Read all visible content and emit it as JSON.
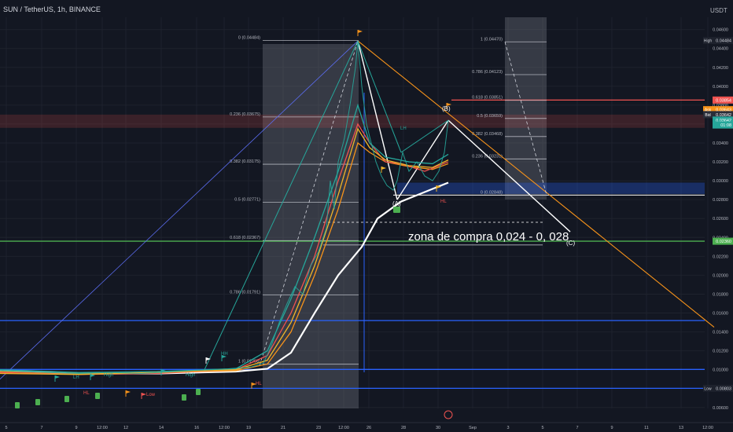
{
  "header": {
    "symbol_line": "SUN / TetherUS, 1h, BINANCE",
    "currency": "USDT"
  },
  "colors": {
    "bg": "#131722",
    "grid": "#1e222d",
    "text": "#b2b5be",
    "fib": "#787b86",
    "orange": "#f7931a",
    "green_line": "#26a69a",
    "red": "#ef5350",
    "blue": "#2962ff",
    "white": "#ffffff",
    "yellow": "#f0b429",
    "lime": "#4caf50"
  },
  "chart_data": {
    "type": "line",
    "title": "SUN / TetherUS, 1h, BINANCE",
    "xlabel": "",
    "ylabel": "USDT",
    "ylim": [
      0.0059,
      0.0473
    ],
    "x_ticks": [
      "5",
      "7",
      "9",
      "12:00",
      "12",
      "14",
      "16",
      "12:00",
      "19",
      "21",
      "23",
      "12:00",
      "26",
      "28",
      "30",
      "Sep",
      "3",
      "5",
      "7",
      "9",
      "11",
      "13",
      "12:00"
    ],
    "y_ticks": [
      "0.00600",
      "0.00800",
      "0.01000",
      "0.01200",
      "0.01400",
      "0.01600",
      "0.01800",
      "0.02000",
      "0.02200",
      "0.02400",
      "0.02600",
      "0.02800",
      "0.03000",
      "0.03200",
      "0.03400",
      "0.03600",
      "0.03800",
      "0.04000",
      "0.04200",
      "0.04400",
      "0.04600"
    ],
    "price_series": {
      "name": "SUN/USDT",
      "points": [
        [
          0,
          0.0099
        ],
        [
          30,
          0.0098
        ],
        [
          60,
          0.0097
        ],
        [
          100,
          0.0096
        ],
        [
          140,
          0.0097
        ],
        [
          180,
          0.0096
        ],
        [
          220,
          0.0098
        ],
        [
          260,
          0.01
        ],
        [
          290,
          0.0101
        ],
        [
          320,
          0.0103
        ],
        [
          335,
          0.0107
        ],
        [
          345,
          0.0125
        ],
        [
          355,
          0.015
        ],
        [
          365,
          0.017
        ],
        [
          375,
          0.0188
        ],
        [
          385,
          0.018
        ],
        [
          395,
          0.021
        ],
        [
          405,
          0.0225
        ],
        [
          415,
          0.025
        ],
        [
          420,
          0.03
        ],
        [
          425,
          0.027
        ],
        [
          430,
          0.032
        ],
        [
          438,
          0.0345
        ],
        [
          445,
          0.038
        ],
        [
          452,
          0.042
        ],
        [
          455,
          0.0448
        ],
        [
          460,
          0.04
        ],
        [
          466,
          0.036
        ],
        [
          472,
          0.034
        ],
        [
          478,
          0.032
        ],
        [
          485,
          0.0305
        ],
        [
          492,
          0.0295
        ],
        [
          500,
          0.029
        ],
        [
          505,
          0.03
        ],
        [
          512,
          0.033
        ],
        [
          520,
          0.031
        ],
        [
          530,
          0.032
        ],
        [
          540,
          0.0305
        ],
        [
          550,
          0.03
        ],
        [
          558,
          0.031
        ],
        [
          565,
          0.033
        ],
        [
          570,
          0.0364
        ]
      ]
    },
    "moving_averages": [
      {
        "color": "#ffffff",
        "points": [
          [
            0,
            0.0099
          ],
          [
            100,
            0.0096
          ],
          [
            200,
            0.0096
          ],
          [
            300,
            0.0098
          ],
          [
            340,
            0.0101
          ],
          [
            370,
            0.0118
          ],
          [
            400,
            0.016
          ],
          [
            430,
            0.02
          ],
          [
            460,
            0.023
          ],
          [
            480,
            0.026
          ],
          [
            510,
            0.0278
          ],
          [
            540,
            0.0288
          ],
          [
            570,
            0.0298
          ]
        ]
      },
      {
        "color": "#f7931a",
        "points": [
          [
            0,
            0.0098
          ],
          [
            100,
            0.0096
          ],
          [
            200,
            0.0097
          ],
          [
            300,
            0.0099
          ],
          [
            340,
            0.0106
          ],
          [
            370,
            0.014
          ],
          [
            400,
            0.02
          ],
          [
            430,
            0.027
          ],
          [
            455,
            0.034
          ],
          [
            470,
            0.033
          ],
          [
            490,
            0.032
          ],
          [
            520,
            0.0315
          ],
          [
            550,
            0.0312
          ],
          [
            570,
            0.0318
          ]
        ]
      },
      {
        "color": "#ef5350",
        "points": [
          [
            0,
            0.0097
          ],
          [
            100,
            0.0095
          ],
          [
            200,
            0.0096
          ],
          [
            300,
            0.01
          ],
          [
            340,
            0.0115
          ],
          [
            370,
            0.016
          ],
          [
            400,
            0.022
          ],
          [
            430,
            0.03
          ],
          [
            455,
            0.036
          ],
          [
            470,
            0.034
          ],
          [
            490,
            0.032
          ],
          [
            510,
            0.0318
          ],
          [
            540,
            0.031
          ],
          [
            570,
            0.032
          ]
        ]
      },
      {
        "color": "#26a69a",
        "points": [
          [
            0,
            0.01
          ],
          [
            100,
            0.0097
          ],
          [
            200,
            0.0098
          ],
          [
            300,
            0.0101
          ],
          [
            340,
            0.012
          ],
          [
            370,
            0.0175
          ],
          [
            400,
            0.024
          ],
          [
            430,
            0.031
          ],
          [
            455,
            0.038
          ],
          [
            470,
            0.034
          ],
          [
            490,
            0.0325
          ],
          [
            520,
            0.032
          ],
          [
            550,
            0.0318
          ],
          [
            570,
            0.0328
          ]
        ]
      },
      {
        "color": "#f0b429",
        "points": [
          [
            0,
            0.0096
          ],
          [
            100,
            0.0095
          ],
          [
            200,
            0.0097
          ],
          [
            300,
            0.01
          ],
          [
            340,
            0.011
          ],
          [
            370,
            0.015
          ],
          [
            400,
            0.021
          ],
          [
            430,
            0.0285
          ],
          [
            455,
            0.0355
          ],
          [
            470,
            0.0335
          ],
          [
            490,
            0.0322
          ],
          [
            520,
            0.0316
          ],
          [
            550,
            0.0314
          ],
          [
            570,
            0.0322
          ]
        ]
      }
    ],
    "fib_left": [
      {
        "label": "0 (0.04484)",
        "value": 0.04484
      },
      {
        "label": "0.236 (0.03675)",
        "value": 0.03675
      },
      {
        "label": "0.382 (0.03175)",
        "value": 0.03175
      },
      {
        "label": "0.5 (0.02771)",
        "value": 0.02771
      },
      {
        "label": "0.618 (0.02367)",
        "value": 0.02367
      },
      {
        "label": "0.786 (0.01791)",
        "value": 0.01791
      },
      {
        "label": "1 (0.01058)",
        "value": 0.01058
      }
    ],
    "fib_right": [
      {
        "label": "1 (0.04470)",
        "value": 0.0447
      },
      {
        "label": "0.786 (0.04123)",
        "value": 0.04123
      },
      {
        "label": "0.618 (0.03851)",
        "value": 0.03851
      },
      {
        "label": "0.5 (0.03659)",
        "value": 0.03659
      },
      {
        "label": "0.382 (0.03468)",
        "value": 0.03468
      },
      {
        "label": "0.236 (0.03231)",
        "value": 0.03231
      },
      {
        "label": "0 (0.02848)",
        "value": 0.02848
      }
    ],
    "horizontal_lines": [
      {
        "value": 0.03854,
        "color": "#ef5350"
      },
      {
        "value": 0.0236,
        "color": "#4caf50"
      },
      {
        "value": 0.0152,
        "color": "#2962ff"
      },
      {
        "value": 0.01003,
        "color": "#2962ff"
      },
      {
        "value": 0.00803,
        "color": "#2962ff"
      },
      {
        "value": 0.02848,
        "color": "#ffffff"
      }
    ],
    "annotations": {
      "zone_text": "zona de compra 0,024 - 0, 028",
      "wave_a": "(A)",
      "wave_b": "(B)",
      "wave_c": "(C)",
      "hl_label": "HL",
      "lh_label": "LH",
      "high_label": "High",
      "low_label": "Low",
      "hh_label": "HH"
    },
    "price_tags": [
      {
        "label": "High",
        "value": "0.04484"
      },
      {
        "label": "",
        "value": "0.03854"
      },
      {
        "label": "Ask",
        "value": "0.03643"
      },
      {
        "label": "Bid",
        "value": "0.03642"
      },
      {
        "label": "",
        "value": "0.03642"
      },
      {
        "label": "",
        "value": "01:08"
      },
      {
        "label": "",
        "value": "0.02360"
      },
      {
        "label": "Low",
        "value": "0.00803"
      }
    ]
  }
}
